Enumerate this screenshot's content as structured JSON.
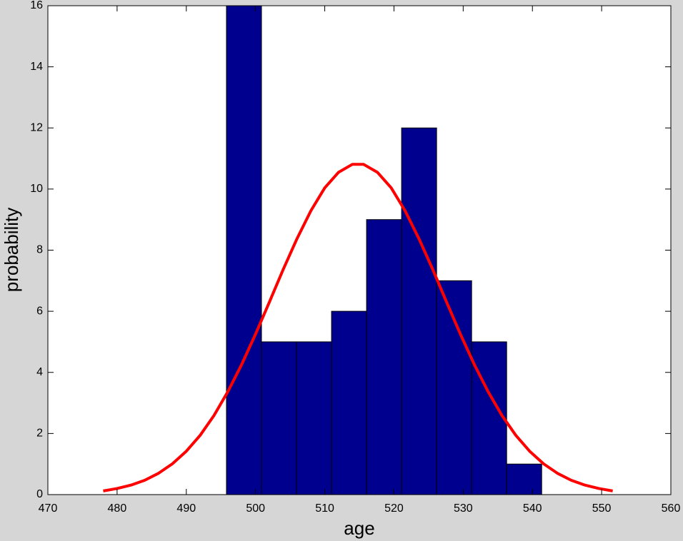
{
  "chart_data": {
    "type": "histogram",
    "x_label": "age",
    "y_label": "probability",
    "bins": [
      495.8,
      500.86,
      505.92,
      510.98,
      516.04,
      521.1,
      526.16,
      531.22,
      536.28,
      541.34
    ],
    "values": [
      16,
      5,
      5,
      6,
      9,
      12,
      7,
      5,
      1
    ],
    "color": "#00008f",
    "curve": {
      "color": "#ff0000",
      "x": [
        478,
        480,
        482,
        484,
        486,
        488,
        490,
        492,
        494,
        496,
        498,
        500,
        502,
        504,
        506,
        508,
        510,
        512,
        514,
        515.6,
        517.6,
        519.6,
        521.6,
        523.6,
        525.6,
        527.6,
        529.6,
        531.6,
        533.6,
        535.6,
        537.6,
        539.6,
        541.6,
        543.6,
        545.6,
        547.6,
        549.6,
        551.6
      ],
      "y": [
        0.12,
        0.2,
        0.31,
        0.47,
        0.7,
        1.01,
        1.42,
        1.94,
        2.59,
        3.37,
        4.26,
        5.25,
        6.3,
        7.37,
        8.38,
        9.29,
        10.04,
        10.55,
        10.81,
        10.81,
        10.55,
        10.04,
        9.29,
        8.38,
        7.37,
        6.3,
        5.25,
        4.26,
        3.37,
        2.59,
        1.94,
        1.42,
        1.01,
        0.7,
        0.47,
        0.31,
        0.2,
        0.12
      ]
    },
    "xlim": [
      470,
      560
    ],
    "ylim": [
      0,
      16
    ],
    "xticks": [
      470,
      480,
      490,
      500,
      510,
      520,
      530,
      540,
      550,
      560
    ],
    "yticks": [
      0,
      2,
      4,
      6,
      8,
      10,
      12,
      14,
      16
    ]
  }
}
